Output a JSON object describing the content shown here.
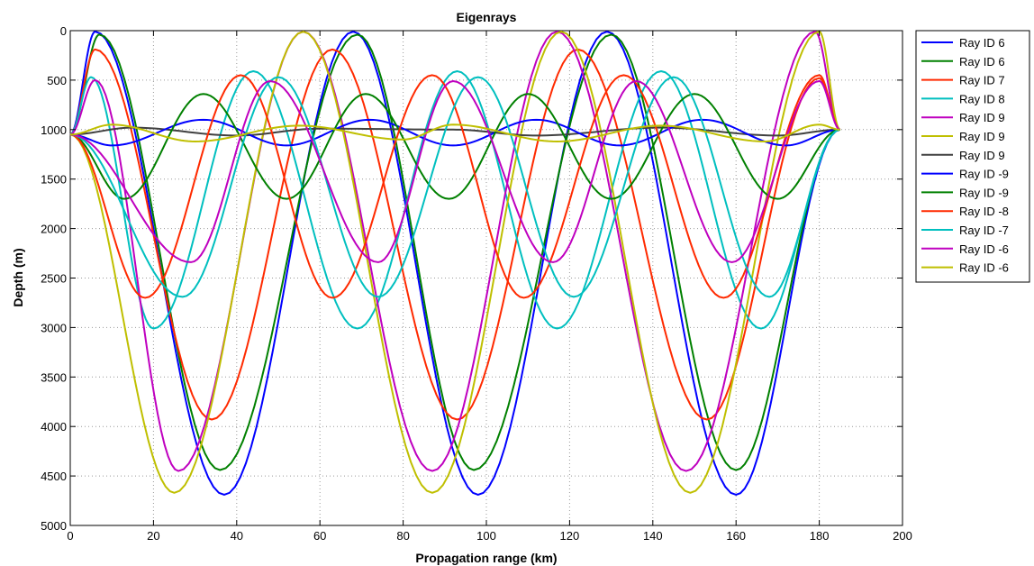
{
  "chart_data": {
    "type": "line",
    "title": "Eigenrays",
    "xlabel": "Propagation range (km)",
    "ylabel": "Depth (m)",
    "xlim": [
      0,
      200
    ],
    "ylim": [
      0,
      5000
    ],
    "y_reversed": true,
    "grid": true,
    "legend_position": "outside-top-right",
    "x_ticks": [
      "0",
      "20",
      "40",
      "60",
      "80",
      "100",
      "120",
      "140",
      "160",
      "180",
      "200"
    ],
    "y_ticks": [
      "0",
      "500",
      "1000",
      "1500",
      "2000",
      "2500",
      "3000",
      "3500",
      "4000",
      "4500",
      "5000"
    ],
    "series": [
      {
        "name": "Ray ID 6",
        "color": "#0000ff",
        "x": [
          0,
          6,
          37,
          68,
          98,
          129,
          160,
          185
        ],
        "y": [
          1050,
          10,
          4690,
          10,
          4690,
          10,
          4690,
          1000
        ]
      },
      {
        "name": "Ray ID 6",
        "color": "#008000",
        "x": [
          0,
          7,
          36,
          69,
          97,
          130,
          160,
          185
        ],
        "y": [
          1050,
          40,
          4440,
          40,
          4440,
          40,
          4440,
          1000
        ]
      },
      {
        "name": "Ray ID 7",
        "color": "#ff2a00",
        "x": [
          0,
          6,
          34,
          63,
          93,
          122,
          153,
          180,
          185
        ],
        "y": [
          1050,
          190,
          3930,
          190,
          3930,
          190,
          3930,
          480,
          1000
        ]
      },
      {
        "name": "Ray ID 8",
        "color": "#00bfbf",
        "x": [
          0,
          5,
          20,
          44,
          69,
          93,
          117,
          142,
          166,
          185
        ],
        "y": [
          1050,
          470,
          3010,
          410,
          3010,
          410,
          3010,
          410,
          3010,
          1000
        ]
      },
      {
        "name": "Ray ID 9",
        "color": "#bf00bf",
        "x": [
          0,
          6,
          26,
          56,
          87,
          117,
          148,
          179,
          185
        ],
        "y": [
          1050,
          500,
          4450,
          10,
          4450,
          10,
          4450,
          10,
          1000
        ]
      },
      {
        "name": "Ray ID 9",
        "color": "#bfbf00",
        "x": [
          0,
          25,
          56,
          87,
          118,
          149,
          180,
          185
        ],
        "y": [
          1050,
          4670,
          10,
          4670,
          10,
          4670,
          10,
          1000
        ]
      },
      {
        "name": "Ray ID 9",
        "color": "#404040",
        "x": [
          0,
          15,
          40,
          60,
          92,
          112,
          142,
          170,
          185
        ],
        "y": [
          1050,
          980,
          1060,
          990,
          1000,
          1060,
          980,
          1060,
          1000
        ]
      },
      {
        "name": "Ray ID -9",
        "color": "#0000ff",
        "x": [
          0,
          10,
          32,
          52,
          72,
          92,
          112,
          132,
          152,
          172,
          185
        ],
        "y": [
          1050,
          1160,
          900,
          1160,
          900,
          1160,
          900,
          1160,
          900,
          1160,
          1000
        ]
      },
      {
        "name": "Ray ID -9",
        "color": "#008000",
        "x": [
          0,
          13,
          32,
          52,
          71,
          91,
          110,
          130,
          150,
          170,
          185
        ],
        "y": [
          1050,
          1700,
          640,
          1700,
          640,
          1700,
          640,
          1700,
          640,
          1700,
          1000
        ]
      },
      {
        "name": "Ray ID -8",
        "color": "#ff2a00",
        "x": [
          0,
          18,
          41,
          63,
          87,
          109,
          133,
          157,
          180,
          185
        ],
        "y": [
          1050,
          2700,
          450,
          2700,
          450,
          2700,
          450,
          2700,
          450,
          1000
        ]
      },
      {
        "name": "Ray ID -7",
        "color": "#00bfbf",
        "x": [
          0,
          27,
          50,
          74,
          98,
          121,
          145,
          168,
          185
        ],
        "y": [
          1050,
          2690,
          470,
          2690,
          470,
          2690,
          470,
          2690,
          1000
        ]
      },
      {
        "name": "Ray ID -6",
        "color": "#bf00bf",
        "x": [
          0,
          29,
          48,
          74,
          92,
          116,
          136,
          159,
          180,
          185
        ],
        "y": [
          1050,
          2340,
          510,
          2340,
          510,
          2340,
          510,
          2340,
          510,
          1000
        ]
      },
      {
        "name": "Ray ID -6",
        "color": "#bfbf00",
        "x": [
          0,
          10,
          30,
          55,
          80,
          92,
          117,
          142,
          167,
          180,
          185
        ],
        "y": [
          1050,
          950,
          1120,
          960,
          1100,
          950,
          1120,
          960,
          1120,
          950,
          1000
        ]
      }
    ]
  }
}
